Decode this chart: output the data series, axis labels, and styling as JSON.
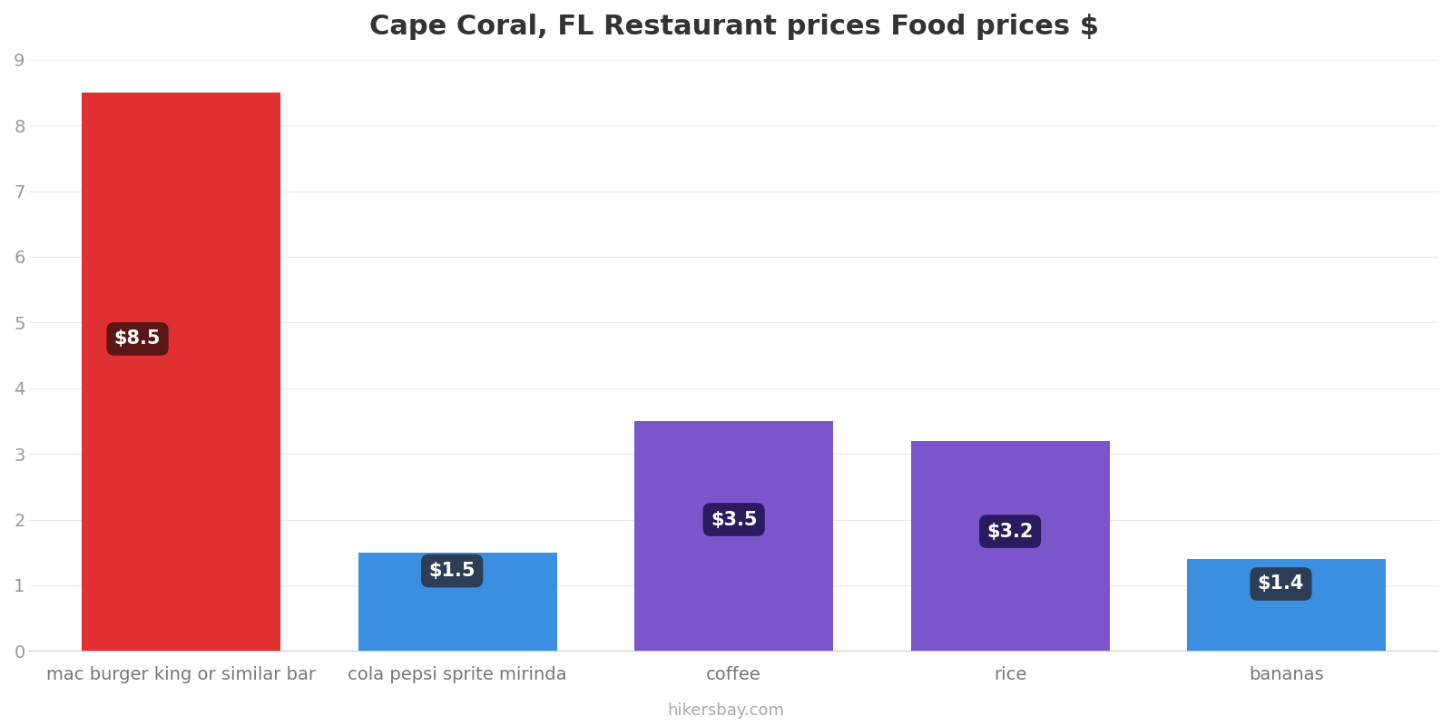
{
  "title": "Cape Coral, FL Restaurant prices Food prices $",
  "categories": [
    "mac burger king or similar bar",
    "cola pepsi sprite mirinda",
    "coffee",
    "rice",
    "bananas"
  ],
  "values": [
    8.5,
    1.5,
    3.5,
    3.2,
    1.4
  ],
  "labels": [
    "$8.5",
    "$1.5",
    "$3.5",
    "$3.2",
    "$1.4"
  ],
  "bar_colors": [
    "#e03030",
    "#3a8fe0",
    "#7b55cc",
    "#7b55cc",
    "#3a8fe0"
  ],
  "label_box_colors": [
    "#5a1515",
    "#2d3d55",
    "#2a1a60",
    "#2a1a60",
    "#2d3d55"
  ],
  "label_box_top_colors": [
    "#5a1515",
    "#555f6b",
    "#2a1a60",
    "#2a1a60",
    "#555f6b"
  ],
  "ylim": [
    0,
    9
  ],
  "yticks": [
    0,
    1,
    2,
    3,
    4,
    5,
    6,
    7,
    8,
    9
  ],
  "title_fontsize": 22,
  "tick_fontsize": 14,
  "watermark": "hikersbay.com",
  "background_color": "#ffffff",
  "grid_color": "#ebebeb",
  "label_y_positions": [
    4.75,
    1.22,
    2.0,
    1.82,
    1.02
  ],
  "bar_width": 0.72
}
